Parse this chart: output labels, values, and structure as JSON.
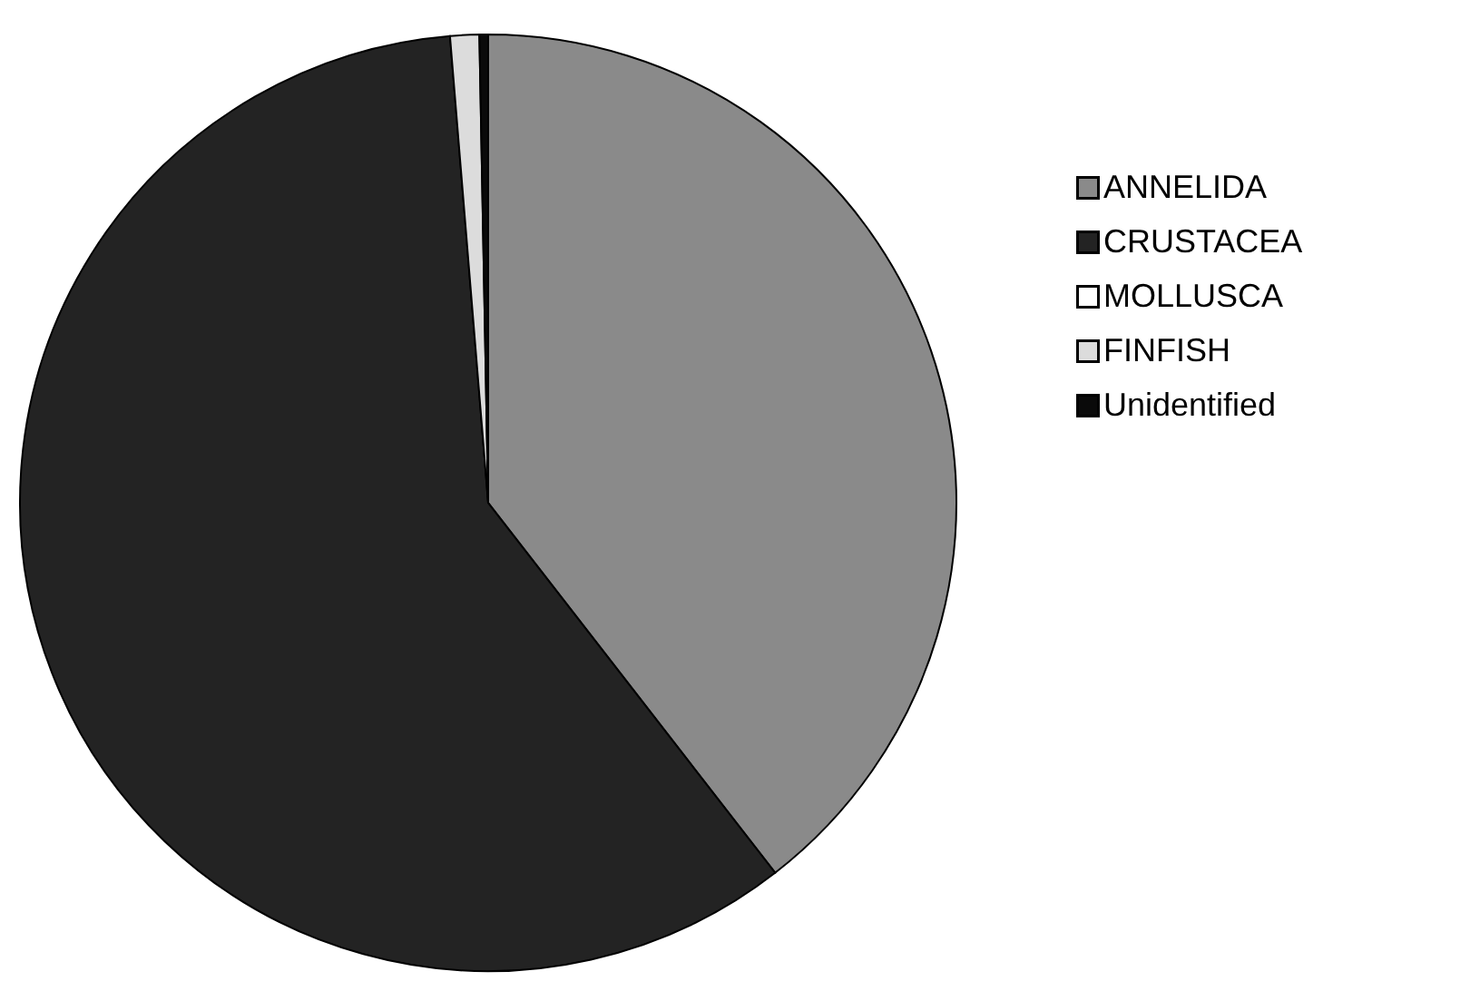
{
  "chart_data": {
    "type": "pie",
    "categories": [
      "ANNELIDA",
      "CRUSTACEA",
      "MOLLUSCA",
      "FINFISH",
      "Unidentified"
    ],
    "values": [
      39.5,
      59.2,
      0,
      1.0,
      0.3
    ],
    "colors": [
      "#8a8a8a",
      "#232323",
      "#ffffff",
      "#dcdcdc",
      "#0a0a0a"
    ],
    "legend": "right"
  }
}
